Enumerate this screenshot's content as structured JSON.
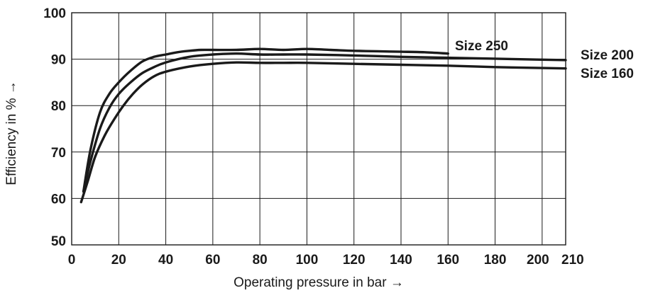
{
  "chart_data": {
    "type": "line",
    "title": "",
    "xlabel": "Operating pressure in bar →",
    "ylabel": "Efficiency in % →",
    "xlim": [
      0,
      210
    ],
    "ylim": [
      50,
      100
    ],
    "x_ticks": [
      0,
      20,
      40,
      60,
      80,
      100,
      120,
      140,
      160,
      180,
      200,
      210
    ],
    "x_tick_labels": [
      "0",
      "20",
      "40",
      "60",
      "80",
      "100",
      "120",
      "140",
      "160",
      "180",
      "200",
      "210"
    ],
    "y_ticks": [
      50,
      60,
      70,
      80,
      90,
      100
    ],
    "y_tick_labels": [
      "50",
      "60",
      "70",
      "80",
      "90",
      "100"
    ],
    "grid": true,
    "colors": {
      "line": "#1a1a1a",
      "grid": "#1a1a1a",
      "text": "#1a1a1a",
      "background": "#ffffff"
    },
    "series": [
      {
        "name": "Size 250",
        "x": [
          5,
          8,
          12,
          16,
          20,
          25,
          30,
          35,
          40,
          45,
          50,
          55,
          60,
          70,
          80,
          90,
          100,
          110,
          120,
          130,
          140,
          150,
          160
        ],
        "y": [
          61.5,
          70.5,
          78.5,
          82.5,
          85.0,
          87.5,
          89.5,
          90.5,
          91.0,
          91.5,
          91.8,
          92.0,
          92.0,
          92.0,
          92.2,
          92.0,
          92.2,
          92.0,
          91.8,
          91.7,
          91.6,
          91.5,
          91.2
        ]
      },
      {
        "name": "Size 200",
        "x": [
          5,
          8,
          12,
          16,
          20,
          25,
          30,
          35,
          40,
          50,
          60,
          70,
          80,
          90,
          100,
          120,
          140,
          160,
          180,
          200,
          210
        ],
        "y": [
          61.5,
          68.0,
          75.0,
          79.5,
          82.5,
          85.0,
          87.0,
          88.3,
          89.3,
          90.5,
          91.0,
          91.2,
          91.0,
          91.0,
          91.0,
          90.8,
          90.5,
          90.3,
          90.1,
          89.9,
          89.8
        ]
      },
      {
        "name": "Size 160",
        "x": [
          4,
          7,
          10,
          14,
          18,
          22,
          26,
          30,
          35,
          40,
          50,
          60,
          70,
          80,
          90,
          100,
          120,
          140,
          160,
          180,
          200,
          210
        ],
        "y": [
          59.2,
          64.0,
          69.0,
          73.5,
          77.0,
          80.0,
          82.5,
          84.5,
          86.3,
          87.3,
          88.4,
          89.0,
          89.3,
          89.2,
          89.2,
          89.2,
          89.0,
          88.8,
          88.6,
          88.3,
          88.1,
          88.0
        ]
      }
    ]
  }
}
